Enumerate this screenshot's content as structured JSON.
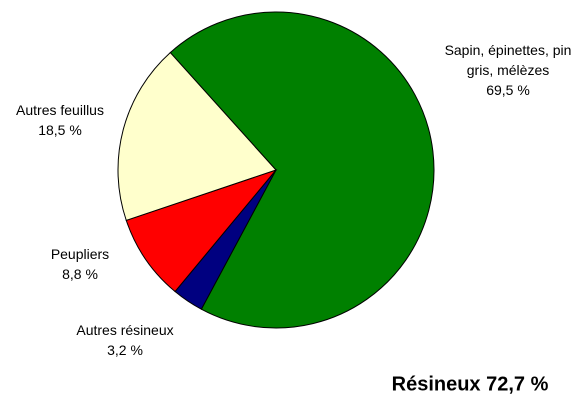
{
  "chart_data": {
    "type": "pie",
    "categories": [
      "Sapin, épinettes, pin gris, mélèzes",
      "Autres résineux",
      "Peupliers",
      "Autres feuillus"
    ],
    "values": [
      69.5,
      3.2,
      8.8,
      18.5
    ],
    "value_labels": [
      "69,5 %",
      "3,2 %",
      "8,8 %",
      "18,5 %"
    ],
    "colors": [
      "#008000",
      "#000080",
      "#ff0000",
      "#ffffcc"
    ],
    "annotation": "Résineux 72,7 %"
  }
}
